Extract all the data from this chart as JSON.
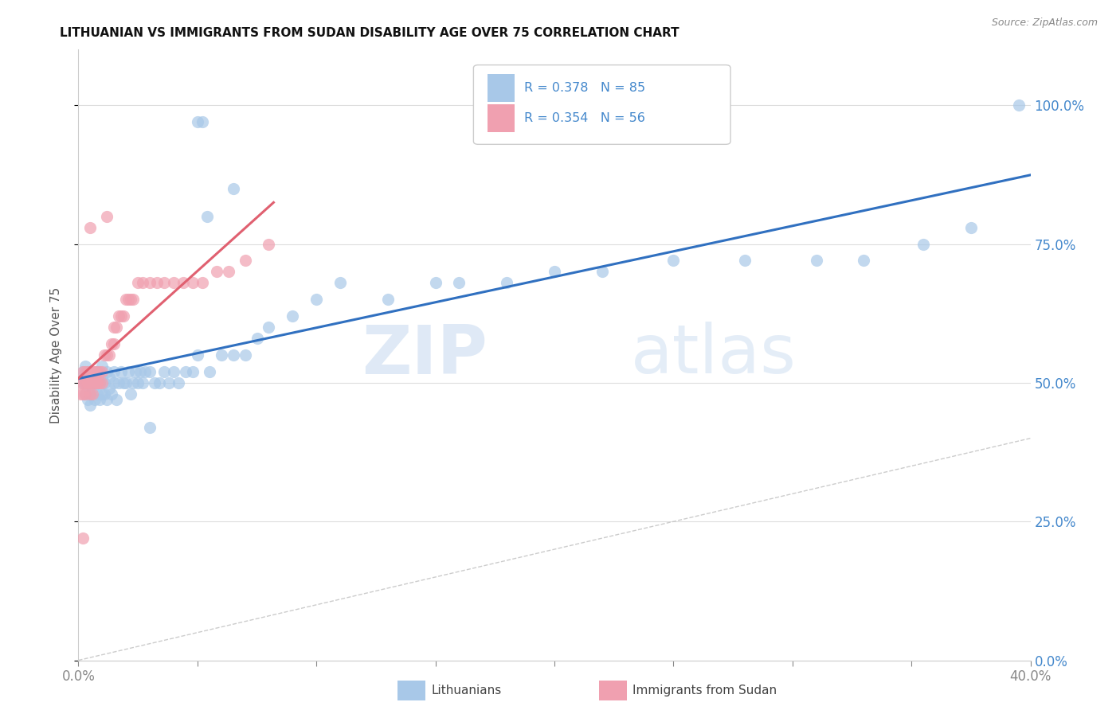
{
  "title": "LITHUANIAN VS IMMIGRANTS FROM SUDAN DISABILITY AGE OVER 75 CORRELATION CHART",
  "source": "Source: ZipAtlas.com",
  "ylabel": "Disability Age Over 75",
  "xlim": [
    0.0,
    0.4
  ],
  "ylim": [
    0.0,
    1.1
  ],
  "ytick_values": [
    0.0,
    0.25,
    0.5,
    0.75,
    1.0
  ],
  "xtick_values": [
    0.0,
    0.05,
    0.1,
    0.15,
    0.2,
    0.25,
    0.3,
    0.35,
    0.4
  ],
  "r_lithuanian": 0.378,
  "n_lithuanian": 85,
  "r_sudan": 0.354,
  "n_sudan": 56,
  "color_blue": "#a8c8e8",
  "color_pink": "#f0a0b0",
  "color_line_blue": "#3070c0",
  "color_line_pink": "#e06070",
  "color_diag": "#c0c0c0",
  "watermark_zip": "ZIP",
  "watermark_atlas": "atlas",
  "legend_labels": [
    "Lithuanians",
    "Immigrants from Sudan"
  ],
  "blue_intercept": 0.465,
  "blue_slope": 0.775,
  "pink_intercept": 0.465,
  "pink_slope": 3.2,
  "blue_x": [
    0.002,
    0.002,
    0.003,
    0.003,
    0.003,
    0.004,
    0.004,
    0.004,
    0.005,
    0.005,
    0.005,
    0.005,
    0.006,
    0.006,
    0.006,
    0.007,
    0.007,
    0.007,
    0.008,
    0.008,
    0.008,
    0.009,
    0.009,
    0.01,
    0.01,
    0.01,
    0.011,
    0.011,
    0.012,
    0.012,
    0.013,
    0.013,
    0.014,
    0.015,
    0.015,
    0.016,
    0.017,
    0.018,
    0.019,
    0.02,
    0.021,
    0.022,
    0.023,
    0.024,
    0.025,
    0.026,
    0.027,
    0.028,
    0.03,
    0.032,
    0.034,
    0.036,
    0.038,
    0.04,
    0.042,
    0.045,
    0.048,
    0.05,
    0.055,
    0.06,
    0.065,
    0.07,
    0.075,
    0.08,
    0.09,
    0.1,
    0.11,
    0.13,
    0.15,
    0.16,
    0.18,
    0.2,
    0.22,
    0.25,
    0.28,
    0.31,
    0.33,
    0.355,
    0.375,
    0.05,
    0.052,
    0.054,
    0.03,
    0.065,
    0.395
  ],
  "blue_y": [
    0.5,
    0.52,
    0.48,
    0.5,
    0.53,
    0.47,
    0.5,
    0.52,
    0.48,
    0.5,
    0.52,
    0.46,
    0.49,
    0.51,
    0.5,
    0.47,
    0.5,
    0.52,
    0.48,
    0.5,
    0.52,
    0.47,
    0.5,
    0.48,
    0.51,
    0.53,
    0.48,
    0.5,
    0.47,
    0.52,
    0.49,
    0.51,
    0.48,
    0.5,
    0.52,
    0.47,
    0.5,
    0.52,
    0.5,
    0.5,
    0.52,
    0.48,
    0.5,
    0.52,
    0.5,
    0.52,
    0.5,
    0.52,
    0.52,
    0.5,
    0.5,
    0.52,
    0.5,
    0.52,
    0.5,
    0.52,
    0.52,
    0.55,
    0.52,
    0.55,
    0.55,
    0.55,
    0.58,
    0.6,
    0.62,
    0.65,
    0.68,
    0.65,
    0.68,
    0.68,
    0.68,
    0.7,
    0.7,
    0.72,
    0.72,
    0.72,
    0.72,
    0.75,
    0.78,
    0.97,
    0.97,
    0.8,
    0.42,
    0.85,
    1.0
  ],
  "pink_x": [
    0.001,
    0.001,
    0.002,
    0.002,
    0.002,
    0.003,
    0.003,
    0.003,
    0.004,
    0.004,
    0.004,
    0.005,
    0.005,
    0.005,
    0.006,
    0.006,
    0.006,
    0.007,
    0.007,
    0.008,
    0.008,
    0.008,
    0.009,
    0.009,
    0.01,
    0.01,
    0.011,
    0.012,
    0.013,
    0.014,
    0.015,
    0.015,
    0.016,
    0.017,
    0.018,
    0.019,
    0.02,
    0.021,
    0.022,
    0.023,
    0.025,
    0.027,
    0.03,
    0.033,
    0.036,
    0.04,
    0.044,
    0.048,
    0.052,
    0.058,
    0.063,
    0.07,
    0.08,
    0.005,
    0.002,
    0.012
  ],
  "pink_y": [
    0.48,
    0.5,
    0.5,
    0.52,
    0.48,
    0.5,
    0.52,
    0.48,
    0.5,
    0.52,
    0.5,
    0.48,
    0.52,
    0.5,
    0.52,
    0.5,
    0.48,
    0.5,
    0.52,
    0.5,
    0.52,
    0.5,
    0.52,
    0.5,
    0.52,
    0.5,
    0.55,
    0.55,
    0.55,
    0.57,
    0.57,
    0.6,
    0.6,
    0.62,
    0.62,
    0.62,
    0.65,
    0.65,
    0.65,
    0.65,
    0.68,
    0.68,
    0.68,
    0.68,
    0.68,
    0.68,
    0.68,
    0.68,
    0.68,
    0.7,
    0.7,
    0.72,
    0.75,
    0.78,
    0.22,
    0.8
  ]
}
